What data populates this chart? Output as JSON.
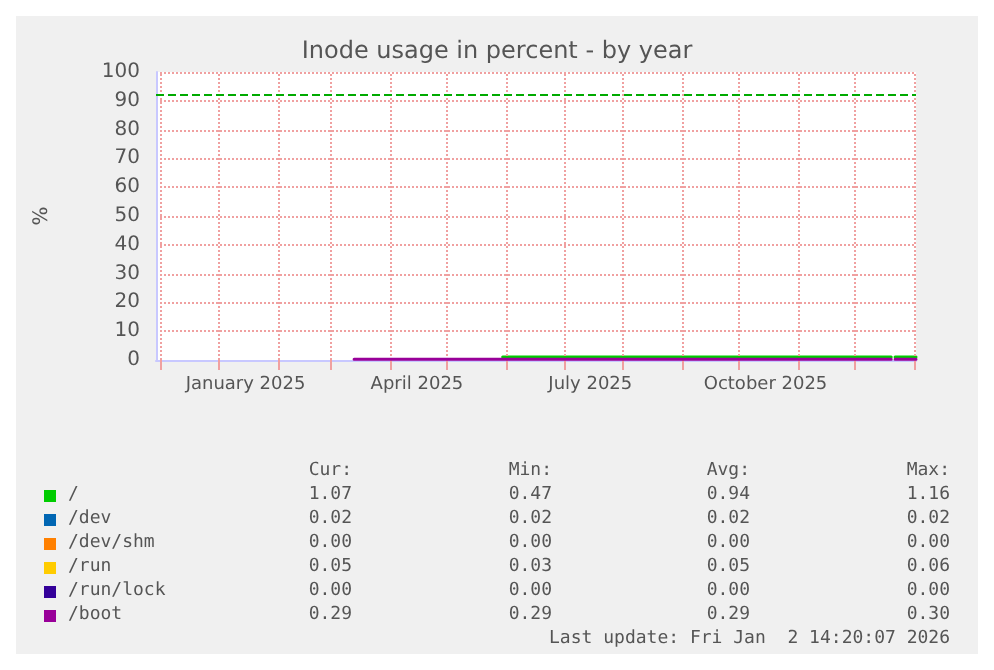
{
  "chart_data": {
    "type": "line",
    "title": "Inode usage in percent - by year",
    "ylabel": "%",
    "x": [
      "2025-03-13",
      "2025-05-29",
      "2025-05-30",
      "2025-12-20",
      "2025-12-21",
      "2025-12-22",
      "2026-01-02"
    ],
    "series": [
      {
        "name": "/",
        "color": "#00cc00",
        "values": [
          null,
          null,
          1,
          1,
          null,
          1,
          1
        ]
      },
      {
        "name": "/dev",
        "color": "#0066b3",
        "values": [
          null,
          null,
          null,
          null,
          null,
          null,
          null
        ]
      },
      {
        "name": "/dev/shm",
        "color": "#ff8000",
        "values": [
          null,
          null,
          null,
          null,
          null,
          null,
          null
        ]
      },
      {
        "name": "/run",
        "color": "#ffcc00",
        "values": [
          null,
          null,
          null,
          null,
          null,
          null,
          null
        ]
      },
      {
        "name": "/run/lock",
        "color": "#330099",
        "values": [
          null,
          null,
          null,
          null,
          null,
          null,
          null
        ]
      },
      {
        "name": "/boot",
        "color": "#990099",
        "values": [
          0.3,
          0.3,
          0.3,
          0.3,
          null,
          0.3,
          0.3
        ]
      }
    ],
    "xlim": [
      "2024-11-29",
      "2026-01-02"
    ],
    "xticks": [
      {
        "value": "2024-12-01",
        "label": null
      },
      {
        "value": "2025-01-01",
        "label": null
      },
      {
        "value": "2025-01-15",
        "label": "January 2025"
      },
      {
        "value": "2025-02-01",
        "label": null
      },
      {
        "value": "2025-03-01",
        "label": null
      },
      {
        "value": "2025-04-01",
        "label": null
      },
      {
        "value": "2025-04-15",
        "label": "April 2025"
      },
      {
        "value": "2025-05-01",
        "label": null
      },
      {
        "value": "2025-06-01",
        "label": null
      },
      {
        "value": "2025-07-01",
        "label": null
      },
      {
        "value": "2025-07-15",
        "label": "July 2025"
      },
      {
        "value": "2025-08-01",
        "label": null
      },
      {
        "value": "2025-09-01",
        "label": null
      },
      {
        "value": "2025-10-01",
        "label": null
      },
      {
        "value": "2025-10-15",
        "label": "October 2025"
      },
      {
        "value": "2025-11-01",
        "label": null
      },
      {
        "value": "2025-12-01",
        "label": null
      },
      {
        "value": "2026-01-01",
        "label": null
      }
    ],
    "ylim": [
      0,
      100
    ],
    "yticks": [
      0,
      10,
      20,
      30,
      40,
      50,
      60,
      70,
      80,
      90,
      100
    ],
    "grid": true,
    "legend": "bottom",
    "marker": "none",
    "line_style": "solid",
    "ref_lines": [
      {
        "axis": "y",
        "value": 92,
        "color": "#00aa00",
        "line_style": "dashed"
      }
    ],
    "annotations": [
      "Cur:",
      "Min:",
      "Avg:",
      "Max:",
      "1.07",
      "0.47",
      "0.94",
      "1.16",
      "0.02",
      "0.02",
      "0.02",
      "0.02",
      "0.00",
      "0.00",
      "0.00",
      "0.00",
      "0.05",
      "0.03",
      "0.05",
      "0.06",
      "0.00",
      "0.00",
      "0.00",
      "0.00",
      "0.29",
      "0.29",
      "0.29",
      "0.30",
      "Last update: Fri Jan  2 14:20:07 2026"
    ]
  }
}
